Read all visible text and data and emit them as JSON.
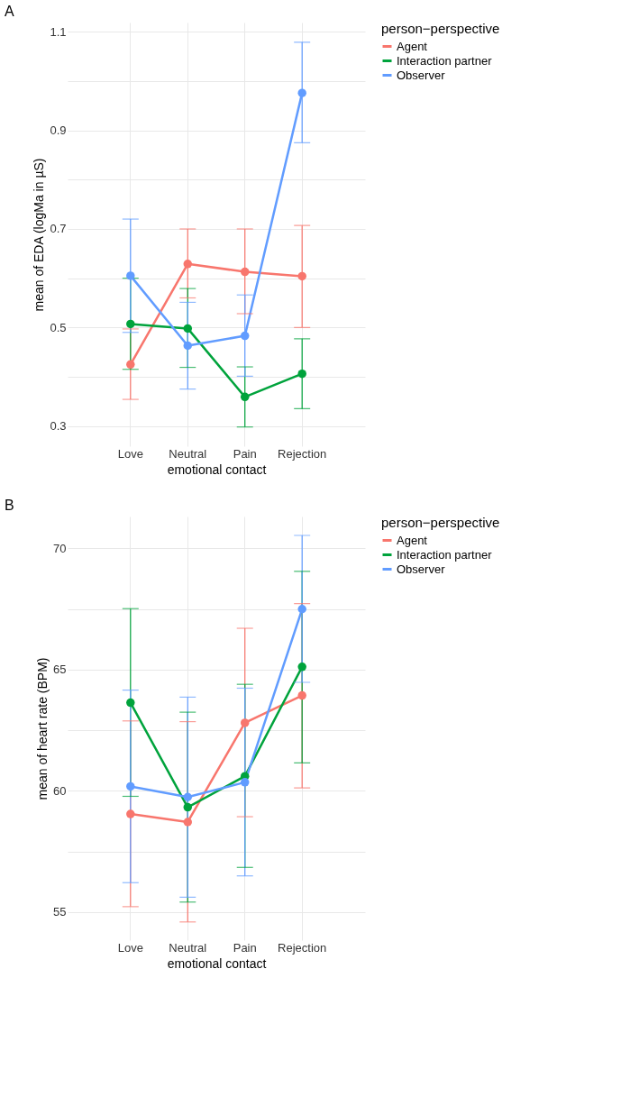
{
  "chart_data": [
    {
      "type": "line",
      "title": "A",
      "xlabel": "emotional contact",
      "ylabel": "mean of EDA (logMa in µS)",
      "legend_title": "person−perspective",
      "legend": "right",
      "grid": true,
      "marker": "circle",
      "categories": [
        "Love",
        "Neutral",
        "Pain",
        "Rejection"
      ],
      "ylim": [
        0.259,
        1.119
      ],
      "yticks": [
        0.3,
        {
          "value": 0.4,
          "label": null
        },
        0.5,
        {
          "value": 0.6,
          "label": null
        },
        0.7,
        {
          "value": 0.8,
          "label": null
        },
        0.9,
        {
          "value": 1.0,
          "label": null
        },
        1.1
      ],
      "series": [
        {
          "name": "Agent",
          "color": "#f8766d",
          "values": [
            0.425,
            0.629,
            0.613,
            0.604
          ],
          "errors": [
            [
              0.354,
              0.497
            ],
            [
              0.56,
              0.7
            ],
            [
              0.528,
              0.7
            ],
            [
              0.5,
              0.707
            ]
          ]
        },
        {
          "name": "Interaction partner",
          "color": "#00a33c",
          "values": [
            0.507,
            0.498,
            0.359,
            0.406
          ],
          "errors": [
            [
              0.415,
              0.6
            ],
            [
              0.419,
              0.579
            ],
            [
              0.298,
              0.42
            ],
            [
              0.335,
              0.477
            ]
          ]
        },
        {
          "name": "Observer",
          "color": "#619cff",
          "values": [
            0.605,
            0.463,
            0.483,
            0.976
          ],
          "errors": [
            [
              0.49,
              0.72
            ],
            [
              0.375,
              0.551
            ],
            [
              0.401,
              0.566
            ],
            [
              0.875,
              1.079
            ]
          ]
        }
      ]
    },
    {
      "type": "line",
      "title": "B",
      "xlabel": "emotional contact",
      "ylabel": "mean of heart rate (BPM)",
      "legend_title": "person−perspective",
      "legend": "right",
      "grid": true,
      "marker": "circle",
      "categories": [
        "Love",
        "Neutral",
        "Pain",
        "Rejection"
      ],
      "ylim": [
        53.84,
        71.31
      ],
      "yticks": [
        55,
        {
          "value": 57.5,
          "label": null
        },
        60,
        {
          "value": 62.5,
          "label": null
        },
        65,
        {
          "value": 67.5,
          "label": null
        },
        70
      ],
      "series": [
        {
          "name": "Agent",
          "color": "#f8766d",
          "values": [
            59.04,
            58.71,
            62.8,
            63.93
          ],
          "errors": [
            [
              55.22,
              62.88
            ],
            [
              54.59,
              62.85
            ],
            [
              58.93,
              66.7
            ],
            [
              60.12,
              67.72
            ]
          ]
        },
        {
          "name": "Interaction partner",
          "color": "#00a33c",
          "values": [
            63.63,
            59.32,
            60.6,
            65.11
          ],
          "errors": [
            [
              59.77,
              67.51
            ],
            [
              55.41,
              63.24
            ],
            [
              56.84,
              64.39
            ],
            [
              61.15,
              69.05
            ]
          ]
        },
        {
          "name": "Observer",
          "color": "#619cff",
          "values": [
            60.18,
            59.74,
            60.35,
            67.49
          ],
          "errors": [
            [
              56.21,
              64.15
            ],
            [
              55.61,
              63.86
            ],
            [
              56.49,
              64.23
            ],
            [
              64.47,
              70.53
            ]
          ]
        }
      ]
    }
  ]
}
